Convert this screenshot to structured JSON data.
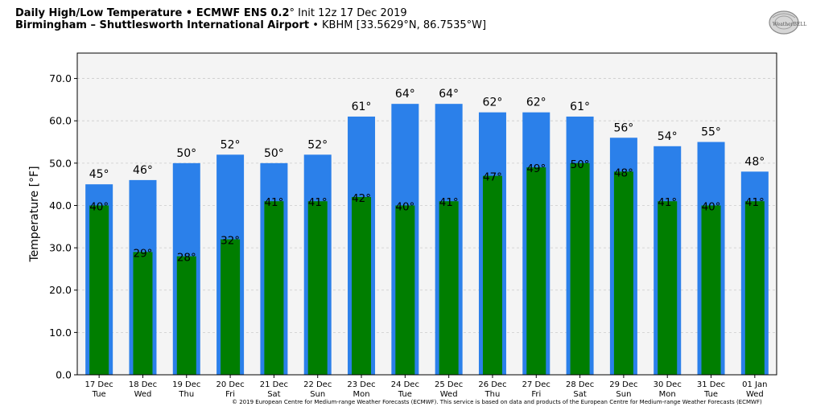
{
  "header": {
    "title_bold": "Daily High/Low Temperature • ECMWF ENS 0.2",
    "title_degree": "°",
    "title_init": " Init 12z 17 Dec 2019",
    "location_bold": "Birmingham – Shuttlesworth International Airport",
    "location_rest": " • KBHM [33.5629°N, 86.7535°W]"
  },
  "logo": {
    "text": "WeatherBELL"
  },
  "copyright": "© 2019 European Centre for Medium-range Weather Forecasts (ECMWF). This service is based on data and products of the European Centre for Medium-range Weather Forecasts (ECMWF)",
  "colors": {
    "high": "#2b80ea",
    "low": "#007e00",
    "plot_bg": "#f4f4f4",
    "grid": "#cccccc"
  },
  "chart_data": {
    "type": "bar",
    "ylabel": "Temperature [°F]",
    "ylim": [
      0,
      76
    ],
    "yticks": [
      "0.0",
      "10.0",
      "20.0",
      "30.0",
      "40.0",
      "50.0",
      "60.0",
      "70.0"
    ],
    "grid": true,
    "categories": [
      [
        "17 Dec",
        "Tue"
      ],
      [
        "18 Dec",
        "Wed"
      ],
      [
        "19 Dec",
        "Thu"
      ],
      [
        "20 Dec",
        "Fri"
      ],
      [
        "21 Dec",
        "Sat"
      ],
      [
        "22 Dec",
        "Sun"
      ],
      [
        "23 Dec",
        "Mon"
      ],
      [
        "24 Dec",
        "Tue"
      ],
      [
        "25 Dec",
        "Wed"
      ],
      [
        "26 Dec",
        "Thu"
      ],
      [
        "27 Dec",
        "Fri"
      ],
      [
        "28 Dec",
        "Sat"
      ],
      [
        "29 Dec",
        "Sun"
      ],
      [
        "30 Dec",
        "Mon"
      ],
      [
        "31 Dec",
        "Tue"
      ],
      [
        "01 Jan",
        "Wed"
      ]
    ],
    "series": [
      {
        "values": [
          45,
          46,
          50,
          52,
          50,
          52,
          61,
          64,
          64,
          62,
          62,
          61,
          56,
          54,
          55,
          48
        ]
      },
      {
        "values": [
          40,
          29,
          28,
          32,
          41,
          41,
          42,
          40,
          41,
          47,
          49,
          50,
          48,
          41,
          40,
          41
        ]
      }
    ],
    "label_suffix": "°"
  }
}
